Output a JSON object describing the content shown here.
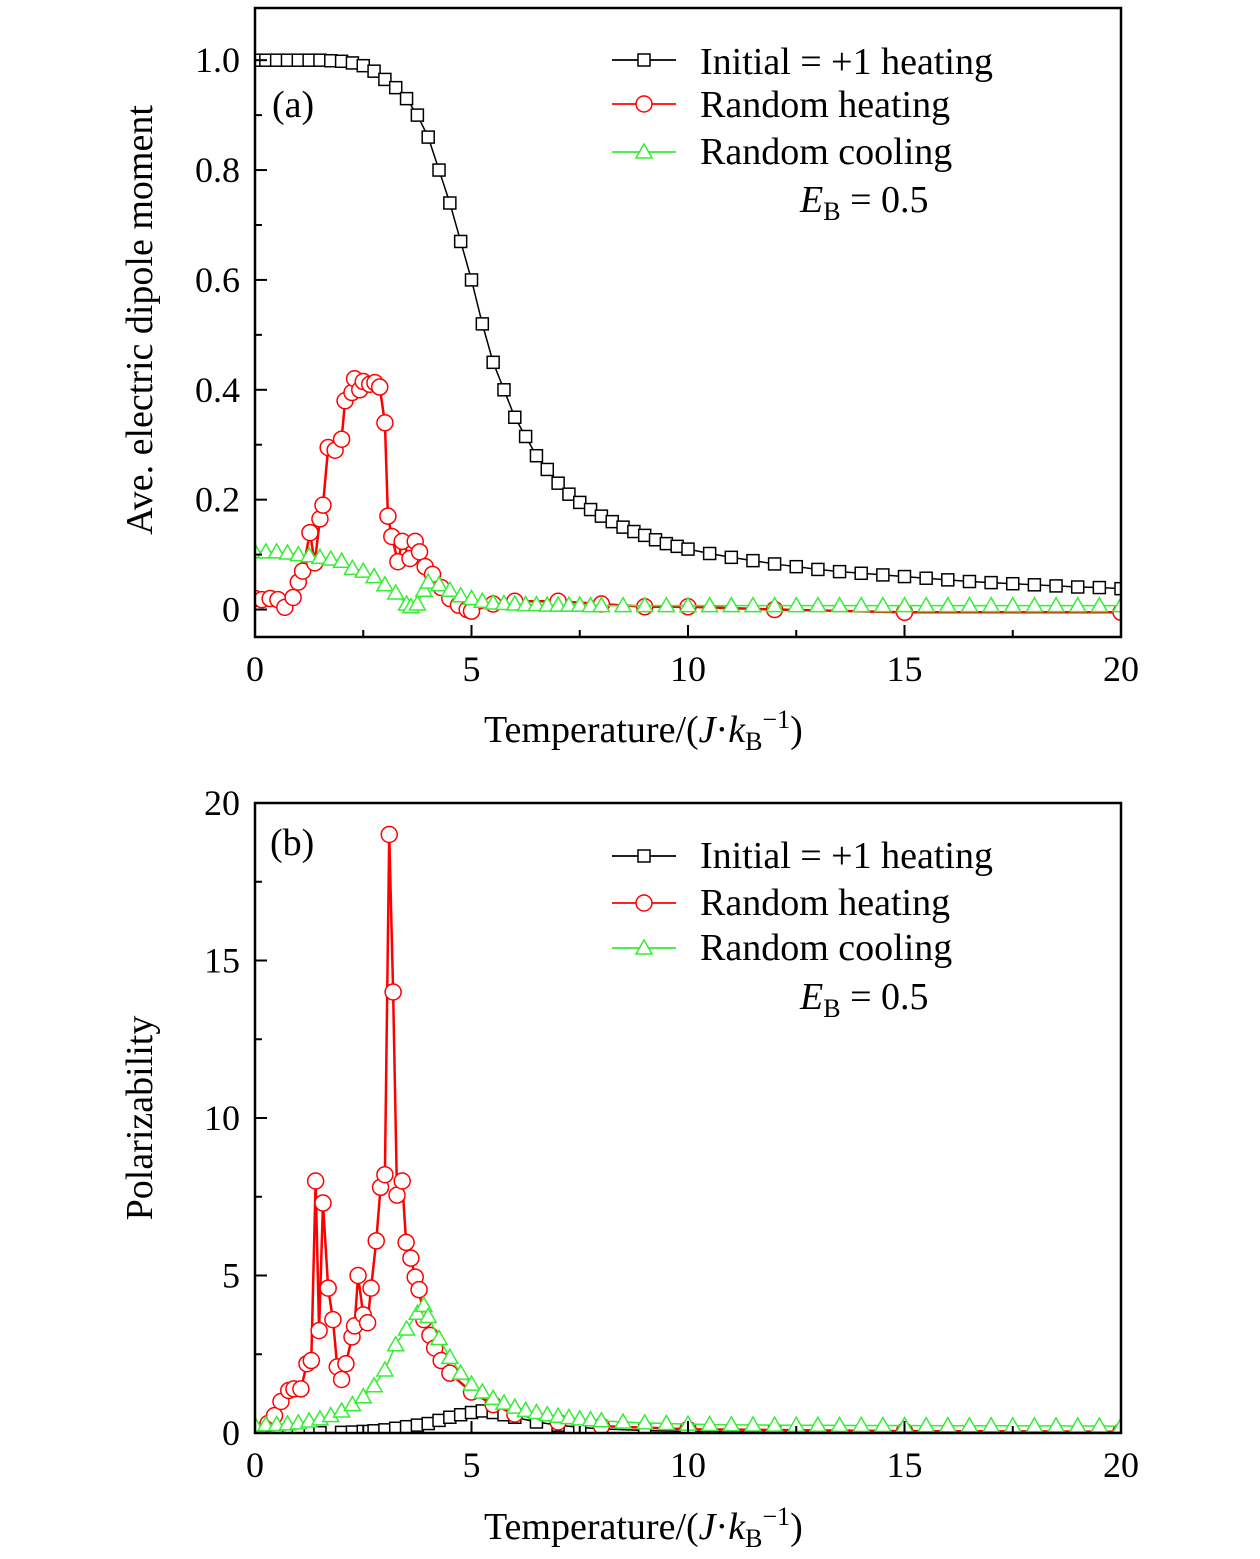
{
  "chart_data": [
    {
      "type": "line",
      "panel_label": "(a)",
      "ylabel": "Ave. electric dipole moment",
      "xlabel": {
        "text": "Temperature/(",
        "var1": "J",
        "dot": "·",
        "var2": "k",
        "sub": "B",
        "sup": "−1",
        "close": ")"
      },
      "annotation": {
        "symbol": "E",
        "sub": "B",
        "value": " = 0.5"
      },
      "xlim": [
        0,
        20
      ],
      "ylim": [
        -0.05,
        1.095
      ],
      "xticks": [
        0,
        5,
        10,
        15,
        20
      ],
      "xtick_labels": [
        "0",
        "5",
        "10",
        "15",
        "20"
      ],
      "yticks": [
        0,
        0.2,
        0.4,
        0.6,
        0.8,
        1.0
      ],
      "ytick_labels": [
        "0",
        "0.2",
        "0.4",
        "0.6",
        "0.8",
        "1.0"
      ],
      "grid": false,
      "legend_position": "top-right",
      "series": [
        {
          "name": "Initial = +1 heating",
          "color": "#000000",
          "marker": "square",
          "x": [
            0,
            0.25,
            0.5,
            0.75,
            1,
            1.25,
            1.5,
            1.75,
            2,
            2.25,
            2.5,
            2.75,
            3,
            3.25,
            3.5,
            3.75,
            4,
            4.25,
            4.5,
            4.75,
            5,
            5.25,
            5.5,
            5.75,
            6,
            6.25,
            6.5,
            6.75,
            7,
            7.25,
            7.5,
            7.75,
            8,
            8.25,
            8.5,
            8.75,
            9,
            9.25,
            9.5,
            9.75,
            10,
            10.5,
            11,
            11.5,
            12,
            12.5,
            13,
            13.5,
            14,
            14.5,
            15,
            15.5,
            16,
            16.5,
            17,
            17.5,
            18,
            18.5,
            19,
            19.5,
            20
          ],
          "y": [
            1,
            1,
            1,
            1,
            1,
            1,
            1,
            0.999,
            0.998,
            0.995,
            0.99,
            0.98,
            0.965,
            0.95,
            0.93,
            0.9,
            0.86,
            0.8,
            0.74,
            0.67,
            0.6,
            0.52,
            0.45,
            0.4,
            0.35,
            0.315,
            0.28,
            0.255,
            0.23,
            0.21,
            0.195,
            0.182,
            0.17,
            0.16,
            0.15,
            0.142,
            0.135,
            0.127,
            0.12,
            0.115,
            0.11,
            0.102,
            0.095,
            0.089,
            0.083,
            0.078,
            0.073,
            0.069,
            0.066,
            0.063,
            0.06,
            0.057,
            0.054,
            0.051,
            0.049,
            0.047,
            0.045,
            0.043,
            0.041,
            0.04,
            0.038
          ]
        },
        {
          "name": "Random heating",
          "color": "#ff0000",
          "marker": "circle",
          "x": [
            0,
            0.16,
            0.35,
            0.53,
            0.69,
            0.88,
            1.0,
            1.1,
            1.27,
            1.38,
            1.5,
            1.57,
            1.69,
            1.85,
            2.0,
            2.08,
            2.24,
            2.3,
            2.42,
            2.5,
            2.65,
            2.77,
            2.88,
            3.0,
            3.07,
            3.16,
            3.3,
            3.4,
            3.58,
            3.7,
            3.8,
            3.93,
            4.1,
            4.3,
            4.5,
            4.7,
            4.9,
            5.0,
            5.5,
            6,
            7,
            8,
            9,
            10,
            12,
            15,
            20
          ],
          "y": [
            0.02,
            0.018,
            0.02,
            0.018,
            0.004,
            0.022,
            0.05,
            0.07,
            0.14,
            0.085,
            0.165,
            0.19,
            0.295,
            0.29,
            0.31,
            0.38,
            0.395,
            0.42,
            0.4,
            0.415,
            0.41,
            0.413,
            0.405,
            0.34,
            0.17,
            0.133,
            0.087,
            0.124,
            0.093,
            0.124,
            0.105,
            0.078,
            0.064,
            0.04,
            0.02,
            0.008,
            0.0,
            -0.003,
            0.01,
            0.015,
            0.015,
            0.01,
            0.005,
            0.005,
            0.0,
            -0.005,
            -0.005
          ]
        },
        {
          "name": "Random cooling",
          "color": "#33ee33",
          "marker": "triangle",
          "x": [
            0,
            0.25,
            0.5,
            0.75,
            1,
            1.25,
            1.5,
            1.75,
            2,
            2.25,
            2.5,
            2.75,
            3,
            3.25,
            3.5,
            3.6,
            3.75,
            3.9,
            4,
            4.25,
            4.5,
            4.75,
            5,
            5.25,
            5.5,
            5.75,
            6,
            6.25,
            6.5,
            6.75,
            7,
            7.25,
            7.5,
            7.75,
            8,
            8.5,
            9,
            9.5,
            10,
            10.5,
            11,
            11.5,
            12,
            12.5,
            13,
            13.5,
            14,
            14.5,
            15,
            15.5,
            16,
            16.5,
            17,
            17.5,
            18,
            18.5,
            19,
            19.5,
            20
          ],
          "y": [
            0.105,
            0.105,
            0.105,
            0.103,
            0.1,
            0.098,
            0.095,
            0.092,
            0.088,
            0.075,
            0.07,
            0.06,
            0.045,
            0.03,
            0.01,
            0.005,
            0.01,
            0.035,
            0.05,
            0.045,
            0.035,
            0.025,
            0.02,
            0.015,
            0.012,
            0.011,
            0.01,
            0.009,
            0.009,
            0.008,
            0.008,
            0.008,
            0.008,
            0.007,
            0.007,
            0.007,
            0.007,
            0.007,
            0.007,
            0.007,
            0.007,
            0.007,
            0.007,
            0.007,
            0.007,
            0.007,
            0.007,
            0.007,
            0.007,
            0.007,
            0.007,
            0.007,
            0.007,
            0.007,
            0.007,
            0.007,
            0.007,
            0.007,
            0.007
          ]
        }
      ]
    },
    {
      "type": "line",
      "panel_label": "(b)",
      "ylabel": "Polarizability",
      "xlabel": {
        "text": "Temperature/(",
        "var1": "J",
        "dot": "·",
        "var2": "k",
        "sub": "B",
        "sup": "−1",
        "close": ")"
      },
      "annotation": {
        "symbol": "E",
        "sub": "B",
        "value": " = 0.5"
      },
      "xlim": [
        0,
        20
      ],
      "ylim": [
        0,
        20
      ],
      "xticks": [
        0,
        5,
        10,
        15,
        20
      ],
      "xtick_labels": [
        "0",
        "5",
        "10",
        "15",
        "20"
      ],
      "yticks": [
        0,
        5,
        10,
        15,
        20
      ],
      "ytick_labels": [
        "0",
        "5",
        "10",
        "15",
        "20"
      ],
      "grid": false,
      "legend_position": "top-right",
      "series": [
        {
          "name": "Initial = +1 heating",
          "color": "#000000",
          "marker": "square",
          "x": [
            0,
            0.5,
            1,
            1.5,
            2,
            2.25,
            2.5,
            2.75,
            3,
            3.25,
            3.5,
            3.75,
            4,
            4.25,
            4.5,
            4.75,
            5,
            5.25,
            5.5,
            5.75,
            6,
            6.5,
            7,
            7.5,
            8,
            9,
            10,
            12,
            15,
            20
          ],
          "y": [
            0,
            0,
            0,
            0.01,
            0.02,
            0.03,
            0.05,
            0.07,
            0.1,
            0.15,
            0.2,
            0.25,
            0.3,
            0.4,
            0.5,
            0.58,
            0.65,
            0.7,
            0.65,
            0.58,
            0.5,
            0.35,
            0.25,
            0.18,
            0.13,
            0.08,
            0.05,
            0.03,
            0.02,
            0.01
          ]
        },
        {
          "name": "Random heating",
          "color": "#ff0000",
          "marker": "circle",
          "x": [
            0.3,
            0.45,
            0.6,
            0.78,
            0.9,
            1.06,
            1.2,
            1.3,
            1.4,
            1.48,
            1.57,
            1.69,
            1.8,
            1.9,
            2.0,
            2.1,
            2.24,
            2.3,
            2.38,
            2.5,
            2.6,
            2.68,
            2.8,
            2.9,
            3.0,
            3.1,
            3.19,
            3.28,
            3.4,
            3.49,
            3.6,
            3.7,
            3.79,
            3.9,
            4.04,
            4.15,
            4.3,
            4.5,
            5,
            5.5,
            6,
            7,
            8,
            10,
            15,
            20
          ],
          "y": [
            0.3,
            0.55,
            1.0,
            1.35,
            1.4,
            1.4,
            2.2,
            2.3,
            8.0,
            3.25,
            7.3,
            4.6,
            3.6,
            2.1,
            1.7,
            2.2,
            3.05,
            3.4,
            5.0,
            3.75,
            3.5,
            4.6,
            6.1,
            7.8,
            8.2,
            19.0,
            14.0,
            7.55,
            8.0,
            6.05,
            5.55,
            4.95,
            4.55,
            3.6,
            3.1,
            2.7,
            2.3,
            1.9,
            1.3,
            0.9,
            0.6,
            0.35,
            0.22,
            0.12,
            0.06,
            0.04
          ]
        },
        {
          "name": "Random cooling",
          "color": "#33ee33",
          "marker": "triangle",
          "x": [
            0,
            0.25,
            0.5,
            0.75,
            1,
            1.25,
            1.5,
            1.75,
            2,
            2.25,
            2.5,
            2.75,
            3,
            3.25,
            3.5,
            3.75,
            3.9,
            4,
            4.25,
            4.5,
            4.75,
            5,
            5.25,
            5.5,
            5.75,
            6,
            6.25,
            6.5,
            6.75,
            7,
            7.25,
            7.5,
            7.75,
            8,
            8.5,
            9,
            9.5,
            10,
            10.5,
            11,
            11.5,
            12,
            12.5,
            13,
            13.5,
            14,
            14.5,
            15,
            15.5,
            16,
            16.5,
            17,
            17.5,
            18,
            18.5,
            19,
            19.5,
            20
          ],
          "y": [
            0.25,
            0.26,
            0.27,
            0.29,
            0.32,
            0.38,
            0.45,
            0.55,
            0.7,
            0.9,
            1.15,
            1.5,
            2.0,
            2.8,
            3.3,
            3.8,
            4.05,
            3.7,
            3.0,
            2.4,
            1.9,
            1.55,
            1.3,
            1.1,
            0.95,
            0.82,
            0.72,
            0.65,
            0.58,
            0.53,
            0.49,
            0.45,
            0.42,
            0.39,
            0.35,
            0.32,
            0.3,
            0.28,
            0.27,
            0.26,
            0.255,
            0.25,
            0.248,
            0.245,
            0.243,
            0.24,
            0.238,
            0.236,
            0.234,
            0.232,
            0.231,
            0.23,
            0.229,
            0.228,
            0.226,
            0.224,
            0.222,
            0.22
          ]
        }
      ]
    }
  ]
}
